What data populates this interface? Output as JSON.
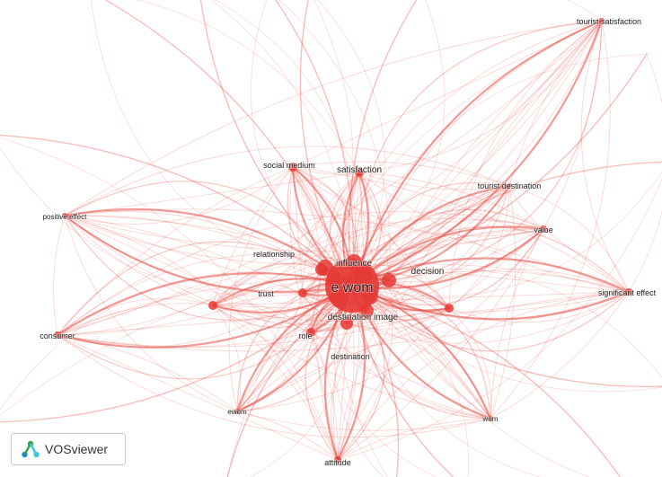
{
  "network": {
    "colors": {
      "edge": "#e8483f",
      "node": "#e53935"
    },
    "nodes": [
      {
        "id": "ewom",
        "label": "e wom"
      },
      {
        "id": "influence",
        "label": "influence"
      },
      {
        "id": "relationship",
        "label": "relationship"
      },
      {
        "id": "decision",
        "label": "decision"
      },
      {
        "id": "trust",
        "label": "trust"
      },
      {
        "id": "destination_image",
        "label": "destination image"
      },
      {
        "id": "role",
        "label": "role"
      },
      {
        "id": "destination",
        "label": "destination"
      },
      {
        "id": "social_medium",
        "label": "social medium"
      },
      {
        "id": "satisfaction",
        "label": "satisfaction"
      },
      {
        "id": "tourist_destination",
        "label": "tourist destination"
      },
      {
        "id": "value",
        "label": "value"
      },
      {
        "id": "tourist_satisfaction",
        "label": "tourist satisfaction"
      },
      {
        "id": "positive_effect",
        "label": "positive effect"
      },
      {
        "id": "consumer",
        "label": "consumer"
      },
      {
        "id": "significant_effect",
        "label": "significant effect"
      },
      {
        "id": "ewom2",
        "label": "ewom"
      },
      {
        "id": "wom",
        "label": "wom"
      },
      {
        "id": "attitude",
        "label": "attitude"
      },
      {
        "id": "hub_a",
        "label": ""
      },
      {
        "id": "hub_b",
        "label": ""
      }
    ]
  },
  "logo": {
    "text": "VOSviewer",
    "icon": "vosviewer-logo-icon"
  }
}
